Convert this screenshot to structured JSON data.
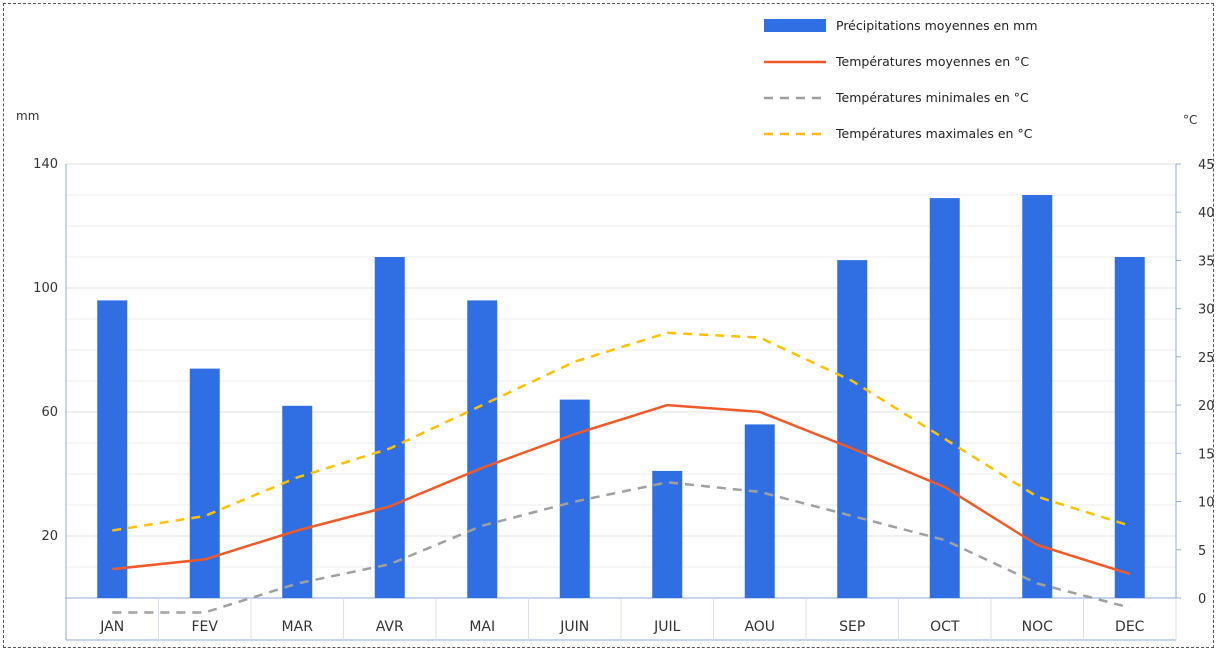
{
  "chart_data": {
    "type": "bar",
    "categories": [
      "JAN",
      "FEV",
      "MAR",
      "AVR",
      "MAI",
      "JUIN",
      "JUIL",
      "AOU",
      "SEP",
      "OCT",
      "NOC",
      "DEC"
    ],
    "ylabel_left": "mm",
    "ylabel_right": "°C",
    "ylim_left": [
      0,
      140
    ],
    "ylim_right": [
      0,
      45
    ],
    "yticks_left": [
      20,
      60,
      100,
      140
    ],
    "yticks_right": [
      0,
      5,
      10,
      15,
      20,
      25,
      30,
      35,
      40,
      45
    ],
    "grid": true,
    "legend_position": "top-right",
    "series": [
      {
        "name": "Précipitations moyennes en mm",
        "type": "bar",
        "axis": "left",
        "color": "#2f6fe3",
        "values": [
          96,
          74,
          62,
          110,
          96,
          64,
          41,
          56,
          109,
          129,
          130,
          110
        ]
      },
      {
        "name": "Températures moyennes en °C",
        "type": "line",
        "style": "solid",
        "axis": "right",
        "color": "#f05a28",
        "values": [
          3,
          4,
          7,
          9.5,
          13.5,
          17,
          20,
          19.3,
          15.5,
          11.5,
          5.5,
          2.5
        ]
      },
      {
        "name": "Températures minimales en °C",
        "type": "line",
        "style": "dashed",
        "axis": "right",
        "color": "#a0a0a0",
        "values": [
          -1.5,
          -1.5,
          1.5,
          3.5,
          7.5,
          10,
          12,
          11,
          8.5,
          6,
          1.5,
          -1
        ]
      },
      {
        "name": "Températures maximales en °C",
        "type": "line",
        "style": "dashed",
        "axis": "right",
        "color": "#ffc000",
        "values": [
          7,
          8.5,
          12.5,
          15.5,
          20,
          24.5,
          27.5,
          27,
          22.5,
          16.5,
          10.5,
          7.5
        ]
      }
    ]
  }
}
